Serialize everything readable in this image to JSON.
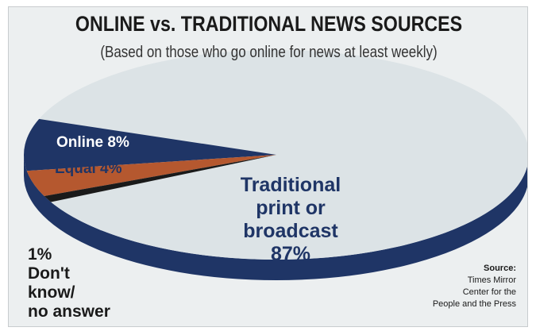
{
  "chart_data": {
    "type": "pie",
    "title": "ONLINE vs. TRADITIONAL NEWS SOURCES",
    "subtitle": "(Based on those who go online for news at least weekly)",
    "slices": [
      {
        "name": "Traditional print or broadcast",
        "value": 87,
        "label_lines": [
          "Traditional",
          "print or",
          "broadcast",
          "87%"
        ],
        "color": "#dce3e6"
      },
      {
        "name": "Online",
        "value": 8,
        "label": "Online 8%",
        "color": "#1f3566"
      },
      {
        "name": "Equal",
        "value": 4,
        "label": "Equal 4%",
        "color": "#b5582f"
      },
      {
        "name": "Don't know/no answer",
        "value": 1,
        "label_lines": [
          "1%",
          "Don't",
          "know/",
          "no answer"
        ],
        "color": "#1a1a1a"
      }
    ],
    "source": {
      "title": "Source:",
      "lines": [
        "Times Mirror",
        "Center for the",
        "People and the Press"
      ]
    }
  },
  "colors": {
    "background": "#eceff0",
    "pie_side": "#1f3566",
    "accent": "#b5582f"
  }
}
